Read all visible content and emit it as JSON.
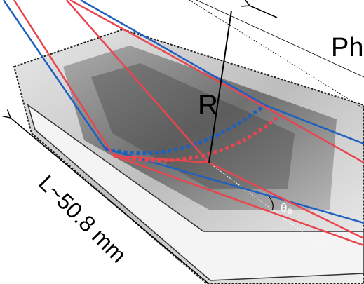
{
  "labels": {
    "photon": "Ph",
    "radius": "R",
    "theta": "θ",
    "theta_sub": "B",
    "length": "L~50.8 mm"
  }
}
